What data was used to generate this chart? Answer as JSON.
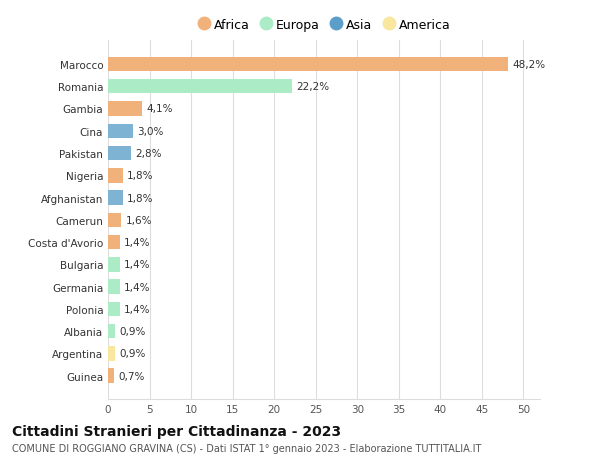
{
  "categories": [
    "Marocco",
    "Romania",
    "Gambia",
    "Cina",
    "Pakistan",
    "Nigeria",
    "Afghanistan",
    "Camerun",
    "Costa d'Avorio",
    "Bulgaria",
    "Germania",
    "Polonia",
    "Albania",
    "Argentina",
    "Guinea"
  ],
  "values": [
    48.2,
    22.2,
    4.1,
    3.0,
    2.8,
    1.8,
    1.8,
    1.6,
    1.4,
    1.4,
    1.4,
    1.4,
    0.9,
    0.9,
    0.7
  ],
  "labels": [
    "48,2%",
    "22,2%",
    "4,1%",
    "3,0%",
    "2,8%",
    "1,8%",
    "1,8%",
    "1,6%",
    "1,4%",
    "1,4%",
    "1,4%",
    "1,4%",
    "0,9%",
    "0,9%",
    "0,7%"
  ],
  "continents": [
    "Africa",
    "Europa",
    "Africa",
    "Asia",
    "Asia",
    "Africa",
    "Asia",
    "Africa",
    "Africa",
    "Europa",
    "Europa",
    "Europa",
    "Europa",
    "America",
    "Africa"
  ],
  "continent_colors": {
    "Africa": "#F0B27A",
    "Europa": "#ABEBC6",
    "Asia": "#7FB3D3",
    "America": "#F9E79F"
  },
  "legend_order": [
    "Africa",
    "Europa",
    "Asia",
    "America"
  ],
  "legend_colors": {
    "Africa": "#F0B27A",
    "Europa": "#ABEBC6",
    "Asia": "#5B9EC9",
    "America": "#F9E79F"
  },
  "xlim": [
    0,
    52
  ],
  "xticks": [
    0,
    5,
    10,
    15,
    20,
    25,
    30,
    35,
    40,
    45,
    50
  ],
  "title": "Cittadini Stranieri per Cittadinanza - 2023",
  "subtitle": "COMUNE DI ROGGIANO GRAVINA (CS) - Dati ISTAT 1° gennaio 2023 - Elaborazione TUTTITALIA.IT",
  "background_color": "#ffffff",
  "grid_color": "#dddddd",
  "bar_height": 0.65,
  "label_fontsize": 7.5,
  "tick_fontsize": 7.5,
  "title_fontsize": 10,
  "subtitle_fontsize": 7
}
